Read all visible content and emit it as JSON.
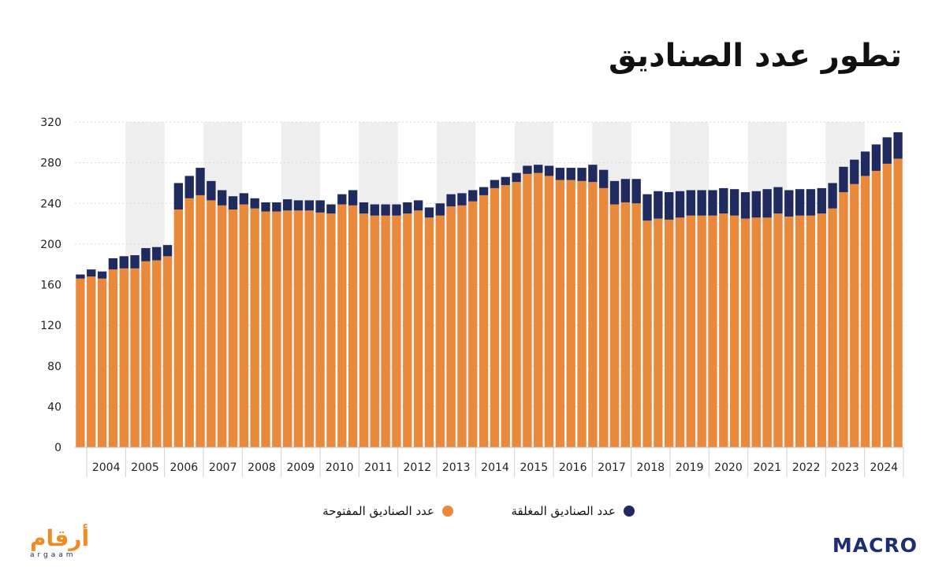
{
  "title": "تطور عدد الصناديق",
  "legend": {
    "open_label": "عدد الصناديق المفتوحة",
    "closed_label": "عدد الصناديق المغلقة"
  },
  "logos": {
    "left_ar": "أرقام",
    "left_en": "argaam",
    "right": "MACRO"
  },
  "colors": {
    "open": "#E8893B",
    "closed": "#1F2B5E",
    "band": "#EFEFEF"
  },
  "chart_data": {
    "type": "bar",
    "stacked": true,
    "ylim": [
      0,
      320
    ],
    "yticks": [
      0,
      40,
      80,
      120,
      160,
      200,
      240,
      280,
      320
    ],
    "years": [
      "2004",
      "2005",
      "2006",
      "2007",
      "2008",
      "2009",
      "2010",
      "2011",
      "2012",
      "2013",
      "2014",
      "2015",
      "2016",
      "2017",
      "2018",
      "2019",
      "2020",
      "2021",
      "2022",
      "2023",
      "2024"
    ],
    "grid": true,
    "series": [
      {
        "name": "عدد الصناديق المفتوحة",
        "values": [
          166,
          168,
          166,
          175,
          176,
          176,
          183,
          184,
          188,
          234,
          245,
          248,
          243,
          238,
          234,
          239,
          235,
          232,
          232,
          233,
          233,
          233,
          231,
          230,
          239,
          238,
          230,
          228,
          228,
          228,
          230,
          233,
          226,
          228,
          237,
          238,
          242,
          248,
          255,
          258,
          261,
          269,
          270,
          267,
          263,
          263,
          262,
          261,
          255,
          239,
          241,
          240,
          223,
          225,
          224,
          226,
          228,
          228,
          228,
          230,
          228,
          225,
          226,
          226,
          230,
          227,
          228,
          228,
          230,
          235,
          251,
          259,
          267,
          272,
          279,
          284
        ]
      },
      {
        "name": "عدد الصناديق المغلقة",
        "values": [
          4,
          7,
          7,
          11,
          12,
          13,
          13,
          13,
          11,
          26,
          22,
          27,
          19,
          15,
          13,
          11,
          10,
          9,
          9,
          11,
          10,
          10,
          12,
          9,
          10,
          15,
          11,
          11,
          11,
          11,
          11,
          10,
          10,
          12,
          12,
          12,
          11,
          8,
          8,
          8,
          9,
          8,
          8,
          10,
          12,
          12,
          13,
          17,
          18,
          23,
          23,
          24,
          26,
          27,
          27,
          26,
          25,
          25,
          25,
          25,
          26,
          26,
          26,
          28,
          26,
          26,
          26,
          26,
          25,
          25,
          25,
          24,
          24,
          26,
          26,
          26
        ]
      }
    ]
  }
}
